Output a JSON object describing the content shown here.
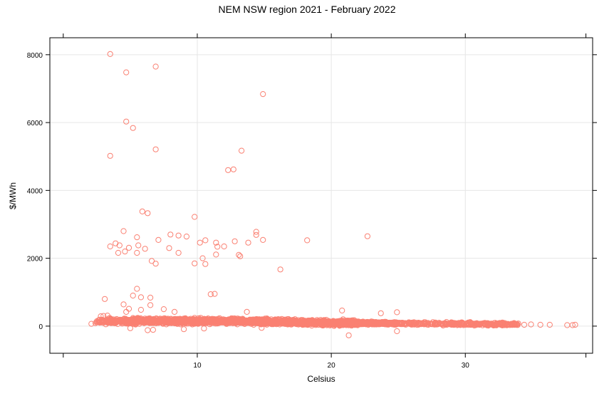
{
  "chart_data": {
    "type": "scatter",
    "title": "NEM NSW region 2021 - February 2022",
    "xlabel": "Celsius",
    "ylabel": "$/MWh",
    "xlim": [
      -1,
      39.5
    ],
    "ylim": [
      -800,
      8500
    ],
    "x_ticks": [
      10,
      20,
      30
    ],
    "x_tick_labels": [
      "10",
      "20",
      "30"
    ],
    "y_ticks": [
      0,
      2000,
      4000,
      6000,
      8000
    ],
    "y_tick_labels": [
      "0",
      "2000",
      "4000",
      "6000",
      "8000"
    ],
    "grid": true,
    "marker": "open-circle",
    "color": "#FA8072",
    "series": [
      {
        "points": [
          [
            3.5,
            8020
          ],
          [
            4.7,
            7480
          ],
          [
            6.9,
            7650
          ],
          [
            14.9,
            6840
          ],
          [
            4.7,
            6030
          ],
          [
            5.2,
            5840
          ],
          [
            6.9,
            5210
          ],
          [
            3.5,
            5020
          ],
          [
            13.3,
            5170
          ],
          [
            12.3,
            4600
          ],
          [
            12.7,
            4620
          ],
          [
            5.9,
            3380
          ],
          [
            6.3,
            3330
          ],
          [
            9.8,
            3220
          ],
          [
            4.5,
            2800
          ],
          [
            14.4,
            2780
          ],
          [
            5.5,
            2620
          ],
          [
            8.0,
            2700
          ],
          [
            8.6,
            2670
          ],
          [
            9.2,
            2640
          ],
          [
            7.1,
            2540
          ],
          [
            10.2,
            2460
          ],
          [
            10.6,
            2530
          ],
          [
            11.4,
            2460
          ],
          [
            12.8,
            2500
          ],
          [
            14.4,
            2690
          ],
          [
            14.9,
            2540
          ],
          [
            18.2,
            2530
          ],
          [
            22.7,
            2650
          ],
          [
            3.5,
            2350
          ],
          [
            3.9,
            2440
          ],
          [
            4.2,
            2380
          ],
          [
            4.9,
            2310
          ],
          [
            5.6,
            2380
          ],
          [
            6.1,
            2280
          ],
          [
            11.5,
            2340
          ],
          [
            12.0,
            2350
          ],
          [
            13.8,
            2460
          ],
          [
            4.1,
            2160
          ],
          [
            4.6,
            2200
          ],
          [
            5.5,
            2160
          ],
          [
            7.9,
            2300
          ],
          [
            8.6,
            2160
          ],
          [
            10.4,
            2000
          ],
          [
            11.4,
            2110
          ],
          [
            13.1,
            2100
          ],
          [
            13.2,
            2060
          ],
          [
            6.6,
            1920
          ],
          [
            6.9,
            1840
          ],
          [
            9.8,
            1850
          ],
          [
            10.6,
            1830
          ],
          [
            16.2,
            1670
          ],
          [
            3.1,
            800
          ],
          [
            5.5,
            1100
          ],
          [
            5.2,
            900
          ],
          [
            5.8,
            850
          ],
          [
            6.5,
            840
          ],
          [
            11.0,
            940
          ],
          [
            11.3,
            950
          ],
          [
            4.5,
            640
          ],
          [
            6.5,
            620
          ],
          [
            7.5,
            500
          ],
          [
            4.9,
            510
          ],
          [
            5.8,
            480
          ],
          [
            4.7,
            420
          ],
          [
            8.3,
            420
          ],
          [
            13.7,
            420
          ],
          [
            20.8,
            460
          ],
          [
            24.9,
            410
          ],
          [
            23.7,
            380
          ],
          [
            21.3,
            -270
          ],
          [
            24.9,
            -150
          ],
          [
            5.0,
            -60
          ],
          [
            6.3,
            -120
          ],
          [
            6.7,
            -110
          ],
          [
            9.0,
            -90
          ],
          [
            10.5,
            -70
          ],
          [
            14.8,
            -50
          ],
          [
            2.1,
            70
          ],
          [
            2.4,
            90
          ],
          [
            2.8,
            290
          ],
          [
            3.0,
            300
          ],
          [
            3.3,
            310
          ],
          [
            32.4,
            60
          ],
          [
            33.0,
            60
          ],
          [
            33.5,
            50
          ],
          [
            34.4,
            40
          ],
          [
            34.9,
            50
          ],
          [
            35.6,
            40
          ],
          [
            36.3,
            40
          ],
          [
            37.6,
            30
          ],
          [
            38.0,
            30
          ],
          [
            38.2,
            40
          ]
        ]
      }
    ]
  }
}
